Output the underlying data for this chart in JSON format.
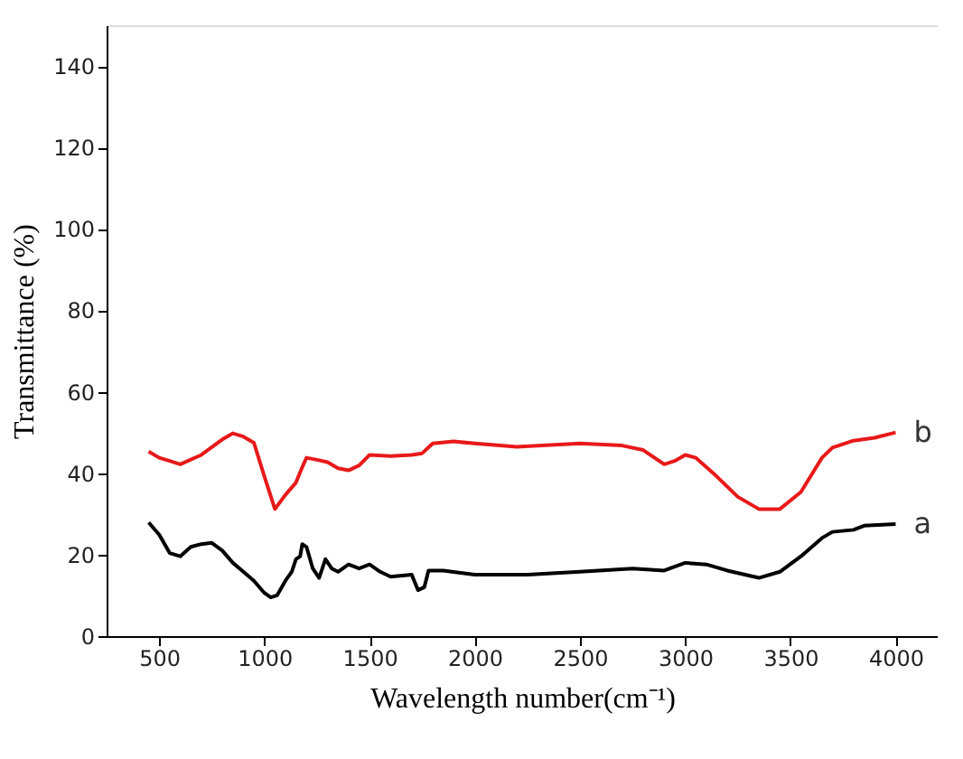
{
  "chart_data": {
    "type": "line",
    "xlabel": "Wavelength number(cm⁻¹)",
    "ylabel": "Transmittance (%)",
    "xlim": [
      250,
      4200
    ],
    "xticks": [
      500,
      1000,
      1500,
      2000,
      2500,
      3000,
      3500,
      4000
    ],
    "ylim": [
      0,
      150
    ],
    "yticks": [
      0,
      20,
      40,
      60,
      80,
      100,
      120,
      140
    ],
    "grid": false,
    "legend": false,
    "marker": "none",
    "line_style": "solid",
    "series": [
      {
        "name": "a",
        "color": "#000000",
        "x": [
          450,
          500,
          550,
          600,
          650,
          700,
          750,
          800,
          850,
          900,
          950,
          1000,
          1030,
          1060,
          1100,
          1130,
          1150,
          1170,
          1180,
          1200,
          1230,
          1260,
          1290,
          1320,
          1350,
          1400,
          1450,
          1500,
          1550,
          1600,
          1700,
          1730,
          1760,
          1780,
          1850,
          2000,
          2250,
          2500,
          2750,
          2900,
          3000,
          3100,
          3200,
          3350,
          3450,
          3550,
          3650,
          3700,
          3800,
          3850,
          4000
        ],
        "values": [
          27.9,
          24.9,
          20.4,
          19.6,
          21.9,
          22.6,
          22.9,
          21,
          18,
          15.8,
          13.6,
          10.6,
          9.5,
          10,
          13.6,
          15.8,
          18.9,
          19.6,
          22.6,
          21.9,
          16.6,
          14.3,
          18.9,
          16.6,
          15.8,
          17.6,
          16.6,
          17.6,
          15.8,
          14.6,
          15.1,
          11.3,
          12,
          16.1,
          16.1,
          15.1,
          15.1,
          15.8,
          16.6,
          16.1,
          18,
          17.6,
          16.1,
          14.3,
          15.8,
          19.6,
          24.1,
          25.6,
          26.1,
          27.1,
          27.5
        ]
      },
      {
        "name": "b",
        "color": "#e8191a",
        "x": [
          450,
          500,
          550,
          600,
          700,
          800,
          850,
          900,
          950,
          1000,
          1050,
          1100,
          1150,
          1180,
          1200,
          1250,
          1300,
          1350,
          1400,
          1450,
          1500,
          1600,
          1700,
          1750,
          1800,
          1900,
          2000,
          2200,
          2500,
          2700,
          2800,
          2900,
          2950,
          3000,
          3050,
          3150,
          3250,
          3350,
          3450,
          3550,
          3650,
          3700,
          3800,
          3900,
          4000
        ],
        "values": [
          45.3,
          43.8,
          43,
          42.2,
          44.5,
          48.3,
          49.8,
          49,
          47.5,
          39.2,
          31.2,
          34.7,
          37.7,
          41.5,
          43.8,
          43.3,
          42.7,
          41.2,
          40.7,
          41.9,
          44.5,
          44.2,
          44.5,
          44.9,
          47.3,
          47.8,
          47.3,
          46.5,
          47.3,
          46.8,
          45.7,
          42.2,
          43,
          44.5,
          43.8,
          39.2,
          34.2,
          31.2,
          31.2,
          35.4,
          43.8,
          46.3,
          48,
          48.7,
          50
        ]
      }
    ]
  }
}
